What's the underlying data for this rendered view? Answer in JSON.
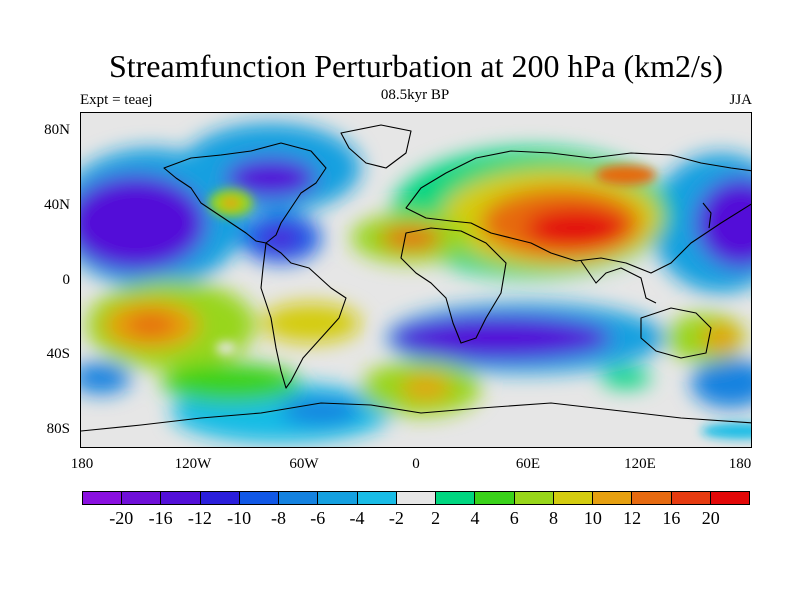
{
  "title": "Streamfunction Perturbation at 200 hPa (km2/s)",
  "left_label": "Expt = teaej",
  "center_label": "08.5kyr BP",
  "right_label": "JJA",
  "y_axis_labels": [
    "80N",
    "40N",
    "0",
    "40S",
    "80S"
  ],
  "x_axis_labels": [
    "180",
    "120W",
    "60W",
    "0",
    "60E",
    "120E",
    "180"
  ],
  "colorbar": {
    "colors": [
      "#8a10e0",
      "#6f10d8",
      "#5310d8",
      "#2b1fdb",
      "#1158e6",
      "#1482e0",
      "#14a0e0",
      "#19bce6",
      "#e6e6e6",
      "#00d680",
      "#3ad21a",
      "#98d61a",
      "#d4cc10",
      "#e6a010",
      "#e66a10",
      "#e63b10",
      "#e30808"
    ],
    "labels": [
      "-20",
      "-16",
      "-12",
      "-10",
      "-8",
      "-6",
      "-4",
      "-2",
      "2",
      "4",
      "6",
      "8",
      "10",
      "12",
      "16",
      "20"
    ]
  }
}
